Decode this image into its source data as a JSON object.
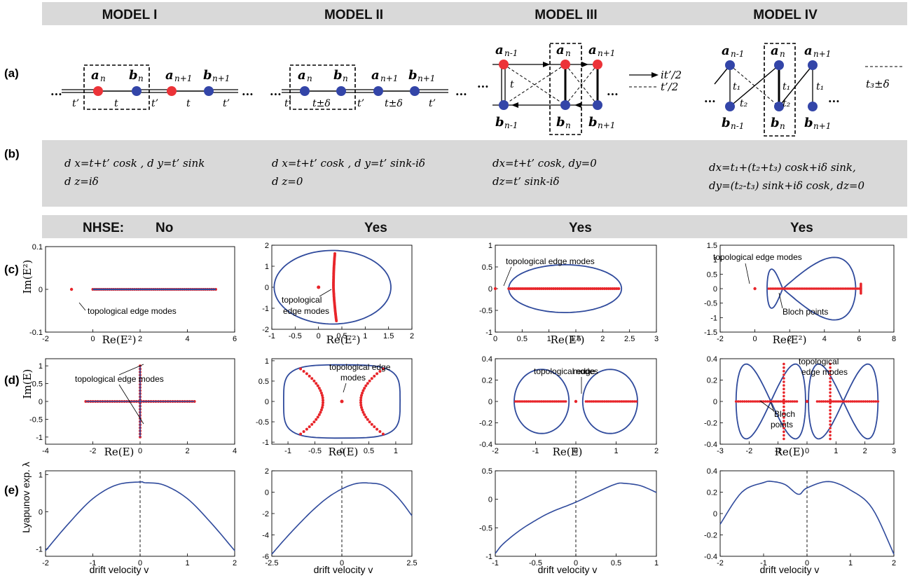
{
  "headers": [
    "MODEL I",
    "MODEL II",
    "MODEL III",
    "MODEL IV"
  ],
  "row_labels": {
    "a": "(a)",
    "b": "(b)",
    "c": "(c)",
    "d": "(d)",
    "e": "(e)"
  },
  "lattice": {
    "ellipsis": "...",
    "a_n": "a",
    "b_n": "b",
    "sub_n": "n",
    "sub_n1": "n+1",
    "sub_nm1": "n-1",
    "t": "t",
    "tp": "t’",
    "t_delta": "t±δ",
    "it_half": "it’/2",
    "tp_half": "t’/2",
    "t3_delta": "t₃±δ",
    "t1": "t₁",
    "t2": "t₂"
  },
  "equations": [
    [
      "d x=t+t’ cosk ,  d y=t’ sink",
      "d z=iδ"
    ],
    [
      "d x=t+t’ cosk , d y=t’ sink-iδ",
      "d z=0"
    ],
    [
      "dx=t+t’ cosk, dy=0",
      "dz=t’ sink-iδ"
    ],
    [
      "dx=t₁+(t₂+t₃) cosk+iδ sink,",
      "dy=(t₂-t₃) sink+iδ cosk,  dz=0"
    ]
  ],
  "nhse": {
    "label": "NHSE:",
    "values": [
      "No",
      "Yes",
      "Yes",
      "Yes"
    ]
  },
  "annotations": {
    "topo": "topological edge modes",
    "topo_l1": "topological",
    "topo_l2": "edge modes",
    "topo_d1": "topological edge",
    "topo_d2": "modes",
    "bloch": "Bloch points",
    "bloch_l1": "Bloch",
    "bloch_l2": "points"
  },
  "axis_labels": {
    "re_e2": "Re(E²)",
    "im_e2": "Im(E²)",
    "re_e": "Re(E)",
    "im_e": "Im(E)",
    "lyap": "Lyapunov exp. λ",
    "drift": "drift velocity v"
  },
  "colors": {
    "blue": "#2f4a9c",
    "red": "#e8252a",
    "band": "#d9d9d9",
    "node_blue": "#3345a8",
    "node_red": "#ec3338"
  },
  "chart_data": [
    {
      "panel": "c1",
      "type": "scatter",
      "xlim": [
        -2,
        6
      ],
      "ylim": [
        -0.1,
        0.1
      ],
      "xticks": [
        -2,
        0,
        2,
        4,
        6
      ],
      "yticks": [
        -0.1,
        0,
        0.1
      ],
      "loop": "line from 0 to 5.2 along Im=0",
      "red_points_x": [
        -0.9,
        0,
        5.2
      ]
    },
    {
      "panel": "c2",
      "type": "scatter",
      "xlim": [
        -1,
        2
      ],
      "ylim": [
        -2,
        2
      ],
      "xticks": [
        -1,
        -0.5,
        0,
        0.5,
        1,
        1.5,
        2
      ],
      "yticks": [
        -2,
        -1,
        0,
        1,
        2
      ],
      "loop": "ellipse centre (0.3, 0), semi-axes 1.25 x 1.75",
      "edge_mode": [
        0,
        0
      ]
    },
    {
      "panel": "c3",
      "type": "scatter",
      "xlim": [
        0,
        3
      ],
      "ylim": [
        -1,
        1
      ],
      "xticks": [
        0,
        0.5,
        1,
        1.5,
        2,
        2.5,
        3
      ],
      "yticks": [
        -1,
        -0.5,
        0,
        0.5,
        1
      ],
      "loop": "ellipse centre (1.3, 0), semi-axes 1.05 x 0.55",
      "red_line": [
        0.25,
        2.3
      ],
      "edge_mode": [
        0,
        0
      ]
    },
    {
      "panel": "c4",
      "type": "scatter",
      "xlim": [
        -2,
        8
      ],
      "ylim": [
        -1.5,
        1.5
      ],
      "xticks": [
        -2,
        0,
        2,
        4,
        6,
        8
      ],
      "yticks": [
        -1.5,
        -1,
        -0.5,
        0,
        0.5,
        1,
        1.5
      ],
      "loop": "figure-eight with crossing near Re=1.6",
      "red_line": [
        0.8,
        6.1
      ],
      "edge_mode": [
        0,
        0
      ]
    },
    {
      "panel": "d1",
      "type": "scatter",
      "xlim": [
        -4,
        4
      ],
      "ylim": [
        -1.2,
        1.2
      ],
      "xticks": [
        -4,
        -2,
        0,
        2,
        4
      ],
      "yticks": [
        -1,
        -0.5,
        0,
        0.5,
        1
      ],
      "cross": "Re from -2.3 to 2.3, Im from -1 to 1"
    },
    {
      "panel": "d2",
      "type": "scatter",
      "xlim": [
        -1.3,
        1.3
      ],
      "ylim": [
        -1.05,
        1.05
      ],
      "xticks": [
        -1,
        -0.5,
        0,
        0.5,
        1
      ],
      "yticks": [
        -1,
        -0.5,
        0,
        0.5,
        1
      ]
    },
    {
      "panel": "d3",
      "type": "scatter",
      "xlim": [
        -2,
        2
      ],
      "ylim": [
        -0.4,
        0.4
      ],
      "xticks": [
        -2,
        -1,
        0,
        1,
        2
      ],
      "yticks": [
        -0.4,
        -0.2,
        0,
        0.2,
        0.4
      ]
    },
    {
      "panel": "d4",
      "type": "scatter",
      "xlim": [
        -3,
        3
      ],
      "ylim": [
        -0.4,
        0.4
      ],
      "xticks": [
        -3,
        -2,
        -1,
        0,
        1,
        2,
        3
      ],
      "yticks": [
        -0.4,
        -0.2,
        0,
        0.2,
        0.4
      ]
    },
    {
      "panel": "e1",
      "type": "line",
      "xlim": [
        -2,
        2
      ],
      "ylim": [
        -1.2,
        1.1
      ],
      "xticks": [
        -2,
        -1,
        0,
        1,
        2
      ],
      "yticks": [
        -1,
        0,
        1
      ],
      "x": [
        -2,
        -1.5,
        -1,
        -0.5,
        0,
        0.1,
        0.5,
        1,
        1.5,
        2
      ],
      "y": [
        -1.05,
        -0.3,
        0.35,
        0.72,
        0.8,
        0.78,
        0.72,
        0.35,
        -0.3,
        -1.05
      ]
    },
    {
      "panel": "e2",
      "type": "line",
      "xlim": [
        -2.5,
        2.5
      ],
      "ylim": [
        -6,
        2
      ],
      "xticks": [
        -2.5,
        0,
        2.5
      ],
      "yticks": [
        -6,
        -4,
        -2,
        0,
        2
      ],
      "x": [
        -2.5,
        -2,
        -1.5,
        -1,
        -0.5,
        0,
        0.5,
        1,
        1.5,
        2,
        2.5
      ],
      "y": [
        -5.8,
        -4.3,
        -2.9,
        -1.6,
        -0.5,
        0.3,
        0.8,
        0.85,
        0.6,
        -0.5,
        -2.2
      ]
    },
    {
      "panel": "e3",
      "type": "line",
      "xlim": [
        -1,
        1
      ],
      "ylim": [
        -1,
        0.5
      ],
      "xticks": [
        -1,
        -0.5,
        0,
        0.5,
        1
      ],
      "yticks": [
        -1,
        -0.5,
        0,
        0.5
      ],
      "x": [
        -1,
        -0.9,
        -0.7,
        -0.5,
        -0.3,
        0,
        0.3,
        0.5,
        0.6,
        0.8,
        1
      ],
      "y": [
        -0.95,
        -0.78,
        -0.55,
        -0.37,
        -0.22,
        -0.05,
        0.15,
        0.27,
        0.28,
        0.24,
        0.12
      ]
    },
    {
      "panel": "e4",
      "type": "line",
      "xlim": [
        -2,
        2
      ],
      "ylim": [
        -0.4,
        0.4
      ],
      "xticks": [
        -2,
        -1,
        0,
        1,
        2
      ],
      "yticks": [
        -0.4,
        -0.2,
        0,
        0.2,
        0.4
      ],
      "x": [
        -2,
        -1.5,
        -1,
        -0.8,
        -0.5,
        -0.2,
        0,
        0.5,
        1,
        1.5,
        2
      ],
      "y": [
        -0.1,
        0.2,
        0.29,
        0.3,
        0.27,
        0.18,
        0.24,
        0.3,
        0.22,
        0.05,
        -0.38
      ]
    }
  ]
}
